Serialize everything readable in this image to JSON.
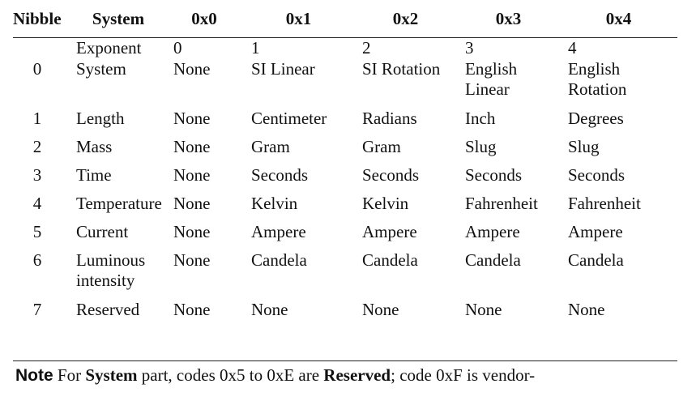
{
  "table": {
    "headers": [
      "Nibble",
      "System",
      "0x0",
      "0x1",
      "0x2",
      "0x3",
      "0x4"
    ],
    "exponent_row": {
      "nibble": "",
      "label": "Exponent",
      "values": [
        "0",
        "1",
        "2",
        "3",
        "4"
      ]
    },
    "rows": [
      {
        "nibble": "0",
        "label": "System",
        "values": [
          "None",
          "SI Linear",
          "SI Rotation",
          "English Linear",
          "English Rotation"
        ]
      },
      {
        "nibble": "1",
        "label": "Length",
        "values": [
          "None",
          "Centimeter",
          "Radians",
          "Inch",
          "Degrees"
        ]
      },
      {
        "nibble": "2",
        "label": "Mass",
        "values": [
          "None",
          "Gram",
          "Gram",
          "Slug",
          "Slug"
        ]
      },
      {
        "nibble": "3",
        "label": "Time",
        "values": [
          "None",
          "Seconds",
          "Seconds",
          "Seconds",
          "Seconds"
        ]
      },
      {
        "nibble": "4",
        "label": "Temperature",
        "values": [
          "None",
          "Kelvin",
          "Kelvin",
          "Fahrenheit",
          "Fahrenheit"
        ]
      },
      {
        "nibble": "5",
        "label": "Current",
        "values": [
          "None",
          "Ampere",
          "Ampere",
          "Ampere",
          "Ampere"
        ]
      },
      {
        "nibble": "6",
        "label": "Luminous intensity",
        "values": [
          "None",
          "Candela",
          "Candela",
          "Candela",
          "Candela"
        ]
      },
      {
        "nibble": "7",
        "label": "Reserved",
        "values": [
          "None",
          "None",
          "None",
          "None",
          "None"
        ]
      }
    ]
  },
  "note": {
    "label": "Note",
    "t1": " For ",
    "b1": "System",
    "t2": " part, codes 0x5 to 0xE are ",
    "b2": "Reserved",
    "t3": "; code 0xF is vendor-"
  }
}
